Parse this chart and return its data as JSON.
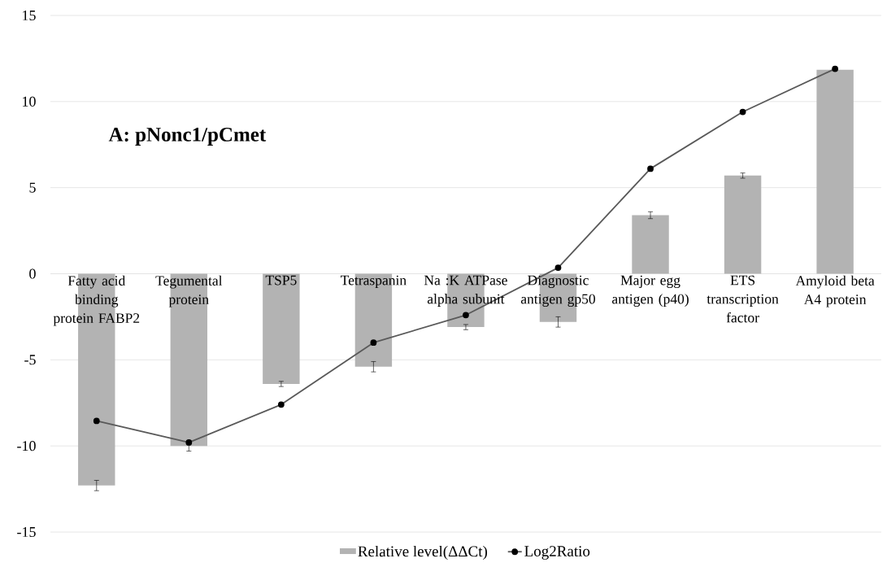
{
  "chart_data": {
    "type": "bar",
    "annotations": [
      "A: pNonc1/pCmet"
    ],
    "categories": [
      "Fatty acid binding protein FABP2",
      "Tegumental protein",
      "TSP5",
      "Tetraspanin",
      "Na :K ATPase alpha subunit",
      "Diagnostic antigen gp50",
      "Major egg antigen (p40)",
      "ETS transcription factor",
      "Amyloid beta A4 protein"
    ],
    "series": [
      {
        "name": "Relative level(ΔΔCt)",
        "color": "#b3b3b3",
        "values": [
          -12.3,
          -10.0,
          -6.4,
          -5.4,
          -3.1,
          -2.8,
          3.4,
          5.7,
          11.85
        ],
        "errors": [
          0.3,
          0.3,
          0.15,
          0.3,
          0.15,
          0.3,
          0.2,
          0.15,
          null
        ]
      },
      {
        "name": "Log2Ratio",
        "type": "line",
        "color": "#595959",
        "values": [
          -8.55,
          -9.8,
          -7.6,
          -4.0,
          -2.4,
          0.35,
          6.1,
          9.4,
          11.9
        ]
      }
    ],
    "ylim": [
      -15,
      15
    ],
    "yticks": [
      -15,
      -10,
      -5,
      0,
      5,
      10,
      15
    ],
    "grid": "y",
    "legend": "bottom",
    "marker": "circle",
    "line_style": "solid"
  }
}
